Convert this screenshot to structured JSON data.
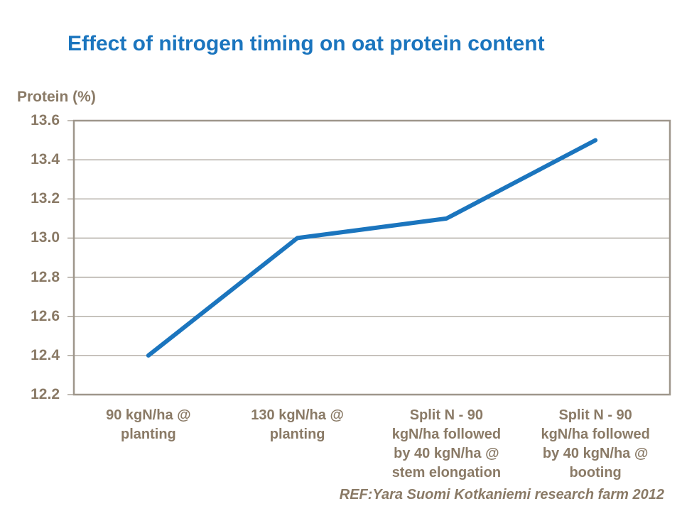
{
  "page": {
    "title": "Effect of nitrogen timing on oat protein content",
    "footer_ref": "REF:Yara Suomi Kotkaniemi research farm 2012"
  },
  "colors": {
    "title_blue": "#1b75be",
    "line_blue": "#1b75be",
    "label_taupe": "#8a7a66",
    "gridline_gray": "#a9a29a",
    "plot_border_gray": "#9e968b",
    "background": "#ffffff"
  },
  "chart_data": {
    "type": "line",
    "title": "Effect of nitrogen timing on oat protein content",
    "xlabel": "",
    "ylabel": "Protein (%)",
    "categories": [
      "90 kgN/ha @\nplanting",
      "130 kgN/ha @\nplanting",
      "Split N - 90\nkgN/ha followed\nby 40 kgN/ha @\nstem elongation",
      "Split N - 90\nkgN/ha followed\nby 40 kgN/ha @\nbooting"
    ],
    "values": [
      12.4,
      13.0,
      13.1,
      13.5
    ],
    "ylim": [
      12.2,
      13.6
    ],
    "ytick_step": 0.2,
    "ytick_decimals": 1,
    "grid": "horizontal",
    "legend": "none",
    "markers": "none",
    "annotation": "REF:Yara Suomi Kotkaniemi research farm 2012"
  }
}
